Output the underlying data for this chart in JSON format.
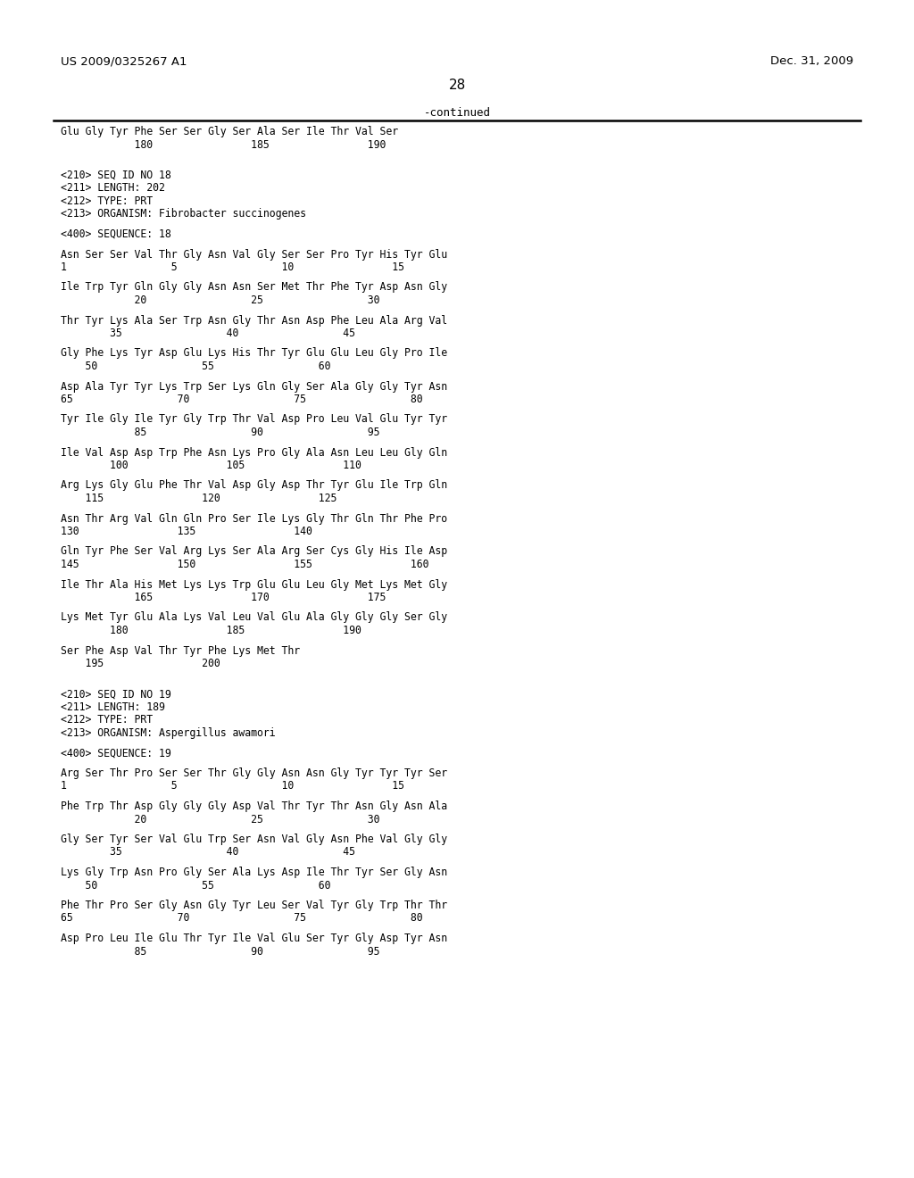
{
  "header_left": "US 2009/0325267 A1",
  "header_right": "Dec. 31, 2009",
  "page_number": "28",
  "continued_label": "-continued",
  "background_color": "#ffffff",
  "text_color": "#000000",
  "content_lines": [
    {
      "type": "seq_line",
      "text": "Glu Gly Tyr Phe Ser Ser Gly Ser Ala Ser Ile Thr Val Ser"
    },
    {
      "type": "num_line",
      "text": "            180                185                190"
    },
    {
      "type": "gap2"
    },
    {
      "type": "meta",
      "text": "<210> SEQ ID NO 18"
    },
    {
      "type": "meta",
      "text": "<211> LENGTH: 202"
    },
    {
      "type": "meta",
      "text": "<212> TYPE: PRT"
    },
    {
      "type": "meta",
      "text": "<213> ORGANISM: Fibrobacter succinogenes"
    },
    {
      "type": "gap1"
    },
    {
      "type": "meta",
      "text": "<400> SEQUENCE: 18"
    },
    {
      "type": "gap1"
    },
    {
      "type": "seq_line",
      "text": "Asn Ser Ser Val Thr Gly Asn Val Gly Ser Ser Pro Tyr His Tyr Glu"
    },
    {
      "type": "num_line",
      "text": "1                 5                 10                15"
    },
    {
      "type": "gap1"
    },
    {
      "type": "seq_line",
      "text": "Ile Trp Tyr Gln Gly Gly Asn Asn Ser Met Thr Phe Tyr Asp Asn Gly"
    },
    {
      "type": "num_line",
      "text": "            20                 25                 30"
    },
    {
      "type": "gap1"
    },
    {
      "type": "seq_line",
      "text": "Thr Tyr Lys Ala Ser Trp Asn Gly Thr Asn Asp Phe Leu Ala Arg Val"
    },
    {
      "type": "num_line",
      "text": "        35                 40                 45"
    },
    {
      "type": "gap1"
    },
    {
      "type": "seq_line",
      "text": "Gly Phe Lys Tyr Asp Glu Lys His Thr Tyr Glu Glu Leu Gly Pro Ile"
    },
    {
      "type": "num_line",
      "text": "    50                 55                 60"
    },
    {
      "type": "gap1"
    },
    {
      "type": "seq_line",
      "text": "Asp Ala Tyr Tyr Lys Trp Ser Lys Gln Gly Ser Ala Gly Gly Tyr Asn"
    },
    {
      "type": "num_line",
      "text": "65                 70                 75                 80"
    },
    {
      "type": "gap1"
    },
    {
      "type": "seq_line",
      "text": "Tyr Ile Gly Ile Tyr Gly Trp Thr Val Asp Pro Leu Val Glu Tyr Tyr"
    },
    {
      "type": "num_line",
      "text": "            85                 90                 95"
    },
    {
      "type": "gap1"
    },
    {
      "type": "seq_line",
      "text": "Ile Val Asp Asp Trp Phe Asn Lys Pro Gly Ala Asn Leu Leu Gly Gln"
    },
    {
      "type": "num_line",
      "text": "        100                105                110"
    },
    {
      "type": "gap1"
    },
    {
      "type": "seq_line",
      "text": "Arg Lys Gly Glu Phe Thr Val Asp Gly Asp Thr Tyr Glu Ile Trp Gln"
    },
    {
      "type": "num_line",
      "text": "    115                120                125"
    },
    {
      "type": "gap1"
    },
    {
      "type": "seq_line",
      "text": "Asn Thr Arg Val Gln Gln Pro Ser Ile Lys Gly Thr Gln Thr Phe Pro"
    },
    {
      "type": "num_line",
      "text": "130                135                140"
    },
    {
      "type": "gap1"
    },
    {
      "type": "seq_line",
      "text": "Gln Tyr Phe Ser Val Arg Lys Ser Ala Arg Ser Cys Gly His Ile Asp"
    },
    {
      "type": "num_line",
      "text": "145                150                155                160"
    },
    {
      "type": "gap1"
    },
    {
      "type": "seq_line",
      "text": "Ile Thr Ala His Met Lys Lys Trp Glu Glu Leu Gly Met Lys Met Gly"
    },
    {
      "type": "num_line",
      "text": "            165                170                175"
    },
    {
      "type": "gap1"
    },
    {
      "type": "seq_line",
      "text": "Lys Met Tyr Glu Ala Lys Val Leu Val Glu Ala Gly Gly Gly Ser Gly"
    },
    {
      "type": "num_line",
      "text": "        180                185                190"
    },
    {
      "type": "gap1"
    },
    {
      "type": "seq_line",
      "text": "Ser Phe Asp Val Thr Tyr Phe Lys Met Thr"
    },
    {
      "type": "num_line",
      "text": "    195                200"
    },
    {
      "type": "gap2"
    },
    {
      "type": "meta",
      "text": "<210> SEQ ID NO 19"
    },
    {
      "type": "meta",
      "text": "<211> LENGTH: 189"
    },
    {
      "type": "meta",
      "text": "<212> TYPE: PRT"
    },
    {
      "type": "meta",
      "text": "<213> ORGANISM: Aspergillus awamori"
    },
    {
      "type": "gap1"
    },
    {
      "type": "meta",
      "text": "<400> SEQUENCE: 19"
    },
    {
      "type": "gap1"
    },
    {
      "type": "seq_line",
      "text": "Arg Ser Thr Pro Ser Ser Thr Gly Gly Asn Asn Gly Tyr Tyr Tyr Ser"
    },
    {
      "type": "num_line",
      "text": "1                 5                 10                15"
    },
    {
      "type": "gap1"
    },
    {
      "type": "seq_line",
      "text": "Phe Trp Thr Asp Gly Gly Gly Asp Val Thr Tyr Thr Asn Gly Asn Ala"
    },
    {
      "type": "num_line",
      "text": "            20                 25                 30"
    },
    {
      "type": "gap1"
    },
    {
      "type": "seq_line",
      "text": "Gly Ser Tyr Ser Val Glu Trp Ser Asn Val Gly Asn Phe Val Gly Gly"
    },
    {
      "type": "num_line",
      "text": "        35                 40                 45"
    },
    {
      "type": "gap1"
    },
    {
      "type": "seq_line",
      "text": "Lys Gly Trp Asn Pro Gly Ser Ala Lys Asp Ile Thr Tyr Ser Gly Asn"
    },
    {
      "type": "num_line",
      "text": "    50                 55                 60"
    },
    {
      "type": "gap1"
    },
    {
      "type": "seq_line",
      "text": "Phe Thr Pro Ser Gly Asn Gly Tyr Leu Ser Val Tyr Gly Trp Thr Thr"
    },
    {
      "type": "num_line",
      "text": "65                 70                 75                 80"
    },
    {
      "type": "gap1"
    },
    {
      "type": "seq_line",
      "text": "Asp Pro Leu Ile Glu Thr Tyr Ile Val Glu Ser Tyr Gly Asp Tyr Asn"
    },
    {
      "type": "num_line",
      "text": "            85                 90                 95"
    }
  ]
}
